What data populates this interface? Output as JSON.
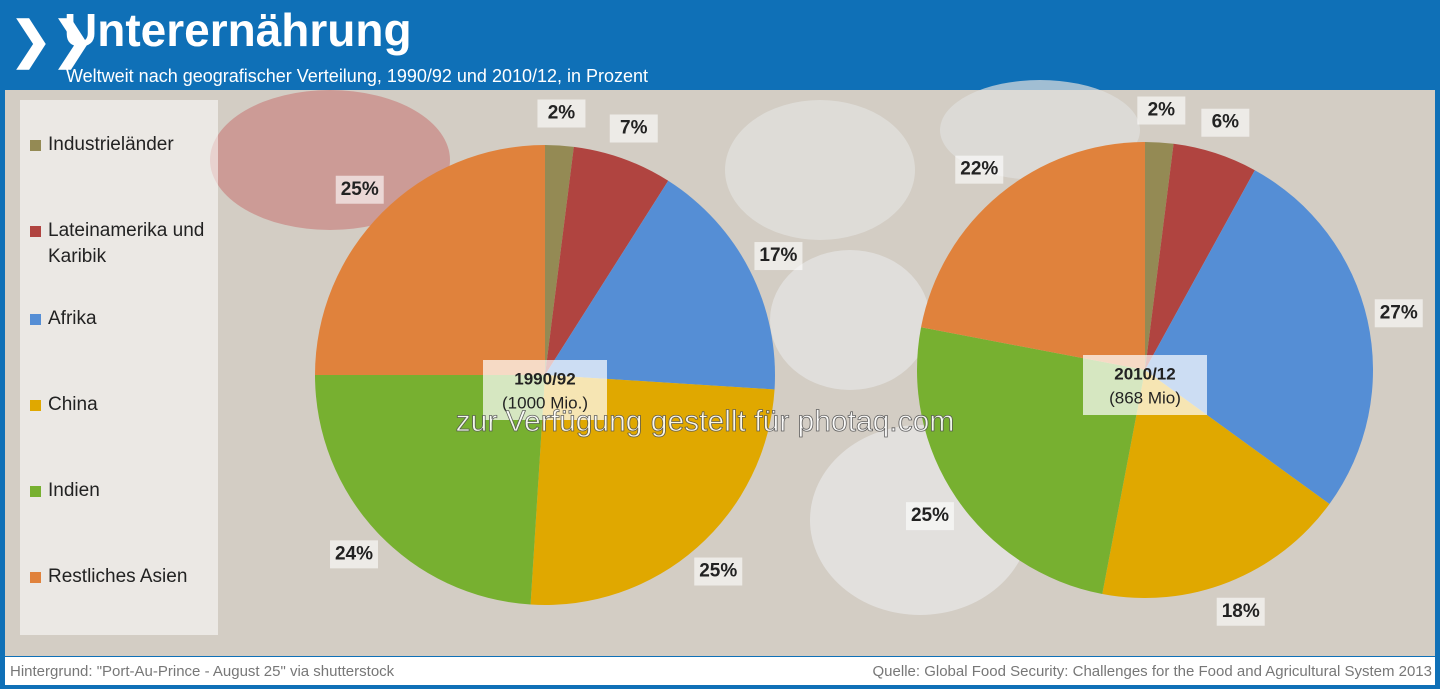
{
  "title": "Unterernährung",
  "subtitle": "Weltweit nach geografischer Verteilung, 1990/92 und 2010/12, in Prozent",
  "legend": {
    "labels": [
      "Industrieländer",
      "Lateinamerika und Karibik",
      "Afrika",
      "China",
      "Indien",
      "Restliches Asien"
    ],
    "colors": [
      "#948a54",
      "#b04440",
      "#558ed5",
      "#e0a800",
      "#77b030",
      "#e0823c"
    ]
  },
  "chart_data": [
    {
      "type": "pie",
      "center_label": "1990/92",
      "center_sublabel": "(1000 Mio.)",
      "values": [
        2,
        7,
        17,
        25,
        24,
        25
      ],
      "value_labels": [
        "2%",
        "7%",
        "17%",
        "25%",
        "24%",
        "25%"
      ]
    },
    {
      "type": "pie",
      "center_label": "2010/12",
      "center_sublabel": "(868 Mio)",
      "values": [
        2,
        6,
        27,
        18,
        25,
        22
      ],
      "value_labels": [
        "2%",
        "6%",
        "27%",
        "18%",
        "25%",
        "22%"
      ]
    }
  ],
  "watermark": "zur Verfügung gestellt für photaq.com",
  "footer": {
    "left": "Hintergrund: \"Port-Au-Prince - August 25\" via shutterstock",
    "right": "Quelle: Global Food Security: Challenges for the Food and Agricultural System 2013"
  }
}
